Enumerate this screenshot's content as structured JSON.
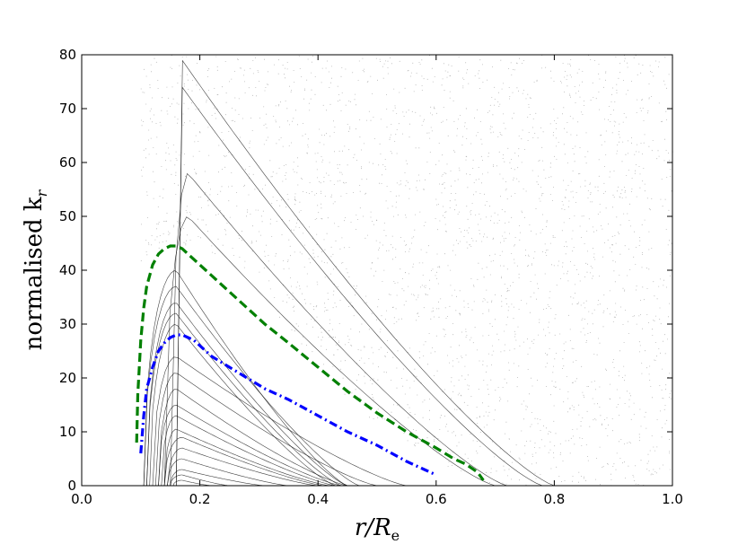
{
  "chart_data": {
    "type": "scatter",
    "title": "",
    "xlabel": "r/R_e",
    "xlabel_parts": {
      "main": "r/R",
      "sub": "e"
    },
    "ylabel": "normalised k_r",
    "ylabel_parts": {
      "main": "normalised k",
      "sub": "r"
    },
    "xlim": [
      0.0,
      1.0
    ],
    "ylim": [
      0,
      80
    ],
    "x_ticks": [
      0.0,
      0.2,
      0.4,
      0.6,
      0.8,
      1.0
    ],
    "x_tick_labels": [
      "0.0",
      "0.2",
      "0.4",
      "0.6",
      "0.8",
      "1.0"
    ],
    "y_ticks": [
      0,
      10,
      20,
      30,
      40,
      50,
      60,
      70,
      80
    ],
    "y_tick_labels": [
      "0",
      "10",
      "20",
      "30",
      "40",
      "50",
      "60",
      "70",
      "80"
    ],
    "grid": false,
    "legend": "none",
    "series": [
      {
        "style": "dashed",
        "color": "#008000",
        "x": [
          0.093,
          0.095,
          0.1,
          0.105,
          0.11,
          0.12,
          0.13,
          0.14,
          0.15,
          0.16,
          0.17,
          0.18,
          0.2,
          0.22,
          0.25,
          0.28,
          0.31,
          0.35,
          0.4,
          0.45,
          0.5,
          0.55,
          0.6,
          0.63,
          0.65,
          0.67,
          0.68
        ],
        "y": [
          8,
          17,
          27,
          33,
          37,
          41,
          43,
          44,
          44.5,
          44.5,
          44,
          43,
          41,
          39,
          36,
          33,
          30,
          26.5,
          22,
          17.5,
          13.5,
          10,
          7,
          5,
          4,
          2.5,
          1
        ]
      },
      {
        "style": "dashdot",
        "color": "#0000ff",
        "x": [
          0.1,
          0.105,
          0.11,
          0.12,
          0.13,
          0.14,
          0.15,
          0.16,
          0.17,
          0.18,
          0.19,
          0.2,
          0.22,
          0.25,
          0.28,
          0.31,
          0.35,
          0.4,
          0.45,
          0.5,
          0.55,
          0.58,
          0.6
        ],
        "y": [
          6,
          13,
          18,
          22,
          25,
          26.5,
          27.5,
          28,
          28,
          27.5,
          27,
          26,
          24,
          22,
          20,
          18,
          16,
          13,
          10,
          7.5,
          4.5,
          3,
          2
        ]
      }
    ],
    "background_orbits": [
      {
        "x0": 0.105,
        "x1": 0.45,
        "peak_x": 0.16,
        "peak_y": 40,
        "color": "#000000"
      },
      {
        "x0": 0.105,
        "x1": 0.47,
        "peak_x": 0.16,
        "peak_y": 37,
        "color": "#000000"
      },
      {
        "x0": 0.11,
        "x1": 0.45,
        "peak_x": 0.16,
        "peak_y": 34,
        "color": "#000000"
      },
      {
        "x0": 0.11,
        "x1": 0.44,
        "peak_x": 0.16,
        "peak_y": 32,
        "color": "#000000"
      },
      {
        "x0": 0.115,
        "x1": 0.43,
        "peak_x": 0.16,
        "peak_y": 30,
        "color": "#000000"
      },
      {
        "x0": 0.12,
        "x1": 0.55,
        "peak_x": 0.16,
        "peak_y": 24,
        "color": "#000000"
      },
      {
        "x0": 0.125,
        "x1": 0.5,
        "peak_x": 0.16,
        "peak_y": 21,
        "color": "#000000"
      },
      {
        "x0": 0.13,
        "x1": 0.45,
        "peak_x": 0.16,
        "peak_y": 18,
        "color": "#000000"
      },
      {
        "x0": 0.13,
        "x1": 0.44,
        "peak_x": 0.16,
        "peak_y": 15,
        "color": "#000000"
      },
      {
        "x0": 0.135,
        "x1": 0.43,
        "peak_x": 0.16,
        "peak_y": 13,
        "color": "#000000"
      },
      {
        "x0": 0.14,
        "x1": 0.42,
        "peak_x": 0.16,
        "peak_y": 10.5,
        "color": "#000000"
      },
      {
        "x0": 0.14,
        "x1": 0.41,
        "peak_x": 0.17,
        "peak_y": 9,
        "color": "#000000"
      },
      {
        "x0": 0.145,
        "x1": 0.4,
        "peak_x": 0.17,
        "peak_y": 7,
        "color": "#000000"
      },
      {
        "x0": 0.145,
        "x1": 0.35,
        "peak_x": 0.17,
        "peak_y": 5,
        "color": "#000000"
      },
      {
        "x0": 0.15,
        "x1": 0.31,
        "peak_x": 0.17,
        "peak_y": 3,
        "color": "#000000"
      },
      {
        "x0": 0.15,
        "x1": 0.25,
        "peak_x": 0.17,
        "peak_y": 2,
        "color": "#000000"
      },
      {
        "x0": 0.155,
        "x1": 0.22,
        "peak_x": 0.17,
        "peak_y": 1,
        "color": "#000000"
      },
      {
        "x0": 0.14,
        "x1": 0.7,
        "peak_x": 0.18,
        "peak_y": 50,
        "color": "#000000"
      },
      {
        "x0": 0.15,
        "x1": 0.72,
        "peak_x": 0.18,
        "peak_y": 58,
        "color": "#000000"
      },
      {
        "x0": 0.16,
        "x1": 0.78,
        "peak_x": 0.17,
        "peak_y": 74,
        "color": "#000000"
      },
      {
        "x0": 0.16,
        "x1": 0.8,
        "peak_x": 0.17,
        "peak_y": 79,
        "color": "#000000"
      }
    ]
  }
}
